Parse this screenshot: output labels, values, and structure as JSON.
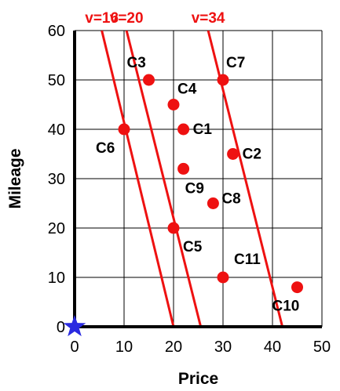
{
  "chart_data": {
    "type": "scatter",
    "xlabel": "Price",
    "ylabel": "Mileage",
    "xlim": [
      0,
      50
    ],
    "ylim": [
      0,
      60
    ],
    "xticks": [
      "0",
      "10",
      "20",
      "30",
      "40",
      "50"
    ],
    "yticks": [
      "0",
      "10",
      "20",
      "30",
      "40",
      "50",
      "60"
    ],
    "grid": true,
    "point_color": "#ee1111",
    "line_color": "#ee1111",
    "origin_marker_color": "#2a2ae0",
    "points": [
      {
        "label": "C1",
        "x": 22,
        "y": 40
      },
      {
        "label": "C2",
        "x": 32,
        "y": 35
      },
      {
        "label": "C3",
        "x": 15,
        "y": 50
      },
      {
        "label": "C4",
        "x": 20,
        "y": 45
      },
      {
        "label": "C5",
        "x": 20,
        "y": 20
      },
      {
        "label": "C6",
        "x": 10,
        "y": 40
      },
      {
        "label": "C7",
        "x": 30,
        "y": 50
      },
      {
        "label": "C8",
        "x": 28,
        "y": 25
      },
      {
        "label": "C9",
        "x": 22,
        "y": 32
      },
      {
        "label": "C10",
        "x": 45,
        "y": 8
      },
      {
        "label": "C11",
        "x": 30,
        "y": 10
      }
    ],
    "lines": [
      {
        "label": "v=16",
        "x_at_y0": 20,
        "x_at_y60": 5.5
      },
      {
        "label": "v=20",
        "x_at_y0": 25.5,
        "x_at_y60": 10.5
      },
      {
        "label": "v=34",
        "x_at_y0": 42,
        "x_at_y60": 27
      }
    ]
  }
}
